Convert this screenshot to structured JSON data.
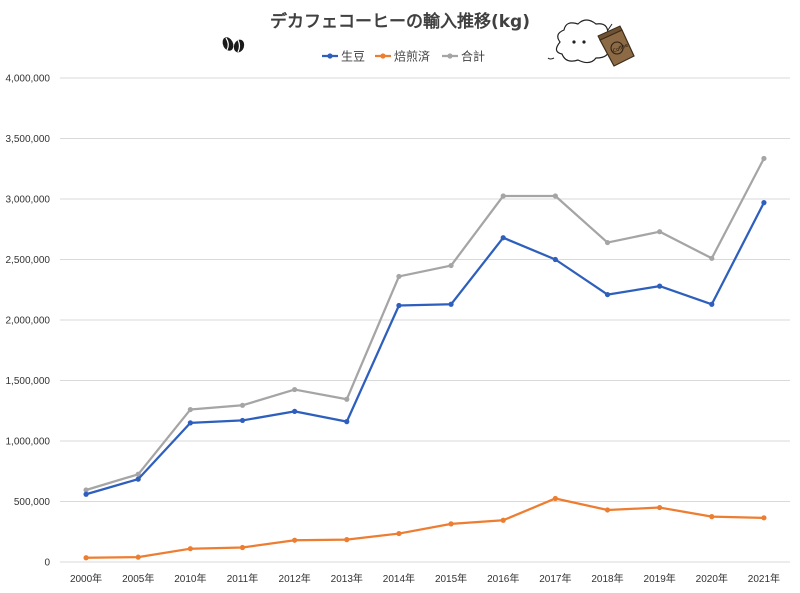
{
  "chart_data": {
    "type": "line",
    "title": "デカフェコーヒーの輸入推移(kg)",
    "xlabel": "",
    "ylabel": "",
    "categories": [
      "2000年",
      "2005年",
      "2010年",
      "2011年",
      "2012年",
      "2013年",
      "2014年",
      "2015年",
      "2016年",
      "2017年",
      "2018年",
      "2019年",
      "2020年",
      "2021年"
    ],
    "ylim": [
      0,
      4000000
    ],
    "yticks": [
      0,
      500000,
      1000000,
      1500000,
      2000000,
      2500000,
      3000000,
      3500000,
      4000000
    ],
    "ytick_labels": [
      "0",
      "500,000",
      "1,000,000",
      "1,500,000",
      "2,000,000",
      "2,500,000",
      "3,000,000",
      "3,500,000",
      "4,000,000"
    ],
    "grid": true,
    "legend_position": "top",
    "series": [
      {
        "name": "生豆",
        "color": "#2e5fbd",
        "values": [
          560000,
          685000,
          1150000,
          1170000,
          1245000,
          1160000,
          2120000,
          2130000,
          2680000,
          2500000,
          2210000,
          2280000,
          2130000,
          2970000
        ]
      },
      {
        "name": "焙煎済",
        "color": "#ed7d31",
        "values": [
          35000,
          40000,
          110000,
          120000,
          180000,
          185000,
          235000,
          315000,
          345000,
          525000,
          430000,
          450000,
          375000,
          365000
        ]
      },
      {
        "name": "合計",
        "color": "#a5a5a5",
        "values": [
          595000,
          725000,
          1260000,
          1295000,
          1425000,
          1345000,
          2360000,
          2450000,
          3025000,
          3025000,
          2640000,
          2730000,
          2510000,
          3335000
        ]
      }
    ]
  },
  "decorations": {
    "bean_icon": "coffee-bean-icon",
    "coffee_bag_icon": "coffee-bag-icon",
    "bag_label": "Coffee"
  }
}
